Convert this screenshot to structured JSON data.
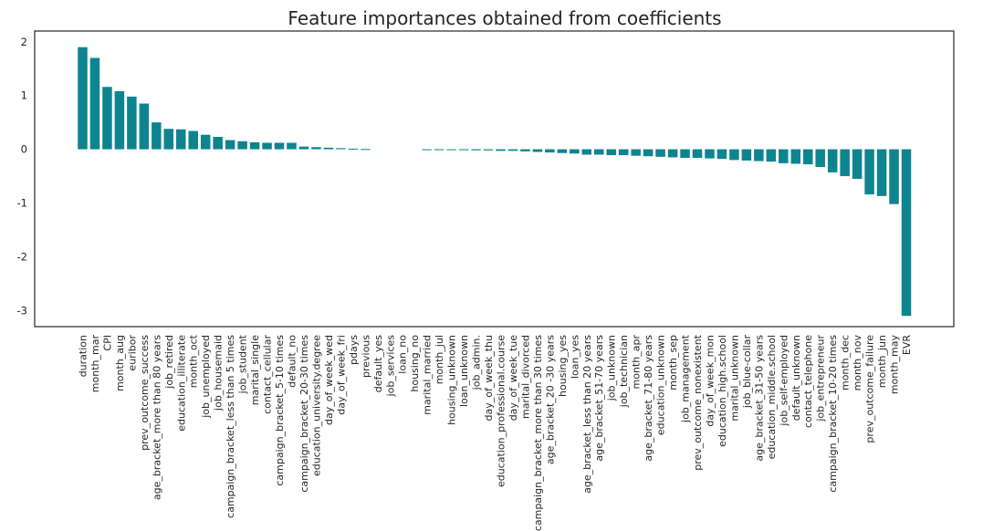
{
  "chart_data": {
    "type": "bar",
    "title": "Feature importances obtained from coefficients",
    "xlabel": "",
    "ylabel": "",
    "ylim": [
      -3.3,
      2.2
    ],
    "yticks": [
      2,
      1,
      0,
      -1,
      -2,
      -3
    ],
    "grid": false,
    "bar_color": "#0e8491",
    "frame_color": "#262626",
    "categories": [
      "duration",
      "month_mar",
      "CPI",
      "month_aug",
      "euribor",
      "prev_outcome_success",
      "age_bracket_more than 80 years",
      "job_retired",
      "education_illiterate",
      "month_oct",
      "job_unemployed",
      "job_housemaid",
      "campaign_bracket_less than 5 times",
      "job_student",
      "marital_single",
      "contact_cellular",
      "campaign_bracket_5-10 times",
      "default_no",
      "campaign_bracket_20-30 times",
      "education_university.degree",
      "day_of_week_wed",
      "day_of_week_fri",
      "pdays",
      "previous",
      "default_yes",
      "job_services",
      "loan_no",
      "housing_no",
      "marital_married",
      "month_jul",
      "housing_unknown",
      "loan_unknown",
      "job_admin.",
      "day_of_week_thu",
      "education_professional.course",
      "day_of_week_tue",
      "marital_divorced",
      "campaign_bracket_more than 30 times",
      "age_bracket_20 -30 years",
      "housing_yes",
      "loan_yes",
      "age_bracket_less than 20 years",
      "age_bracket_51-70 years",
      "job_unknown",
      "job_technician",
      "month_apr",
      "age_bracket_71-80 years",
      "education_unknown",
      "month_sep",
      "job_management",
      "prev_outcome_nonexistent",
      "day_of_week_mon",
      "education_high.school",
      "marital_unknown",
      "job_blue-collar",
      "age_bracket_31-50 years",
      "education_middle.school",
      "job_self-employed",
      "default_unknown",
      "contact_telephone",
      "job_entrepreneur",
      "campaign_bracket_10-20 times",
      "month_dec",
      "month_nov",
      "prev_outcome_failure",
      "month_jun",
      "month_may",
      "EVR"
    ],
    "values": [
      1.9,
      1.7,
      1.16,
      1.08,
      0.98,
      0.85,
      0.5,
      0.38,
      0.37,
      0.34,
      0.27,
      0.23,
      0.17,
      0.15,
      0.13,
      0.12,
      0.12,
      0.12,
      0.05,
      0.04,
      0.03,
      0.02,
      0.01,
      0.005,
      0.0,
      0.0,
      0.0,
      0.0,
      -0.01,
      -0.01,
      -0.01,
      -0.015,
      -0.02,
      -0.02,
      -0.03,
      -0.03,
      -0.04,
      -0.05,
      -0.06,
      -0.07,
      -0.08,
      -0.1,
      -0.1,
      -0.11,
      -0.11,
      -0.12,
      -0.13,
      -0.14,
      -0.15,
      -0.16,
      -0.16,
      -0.17,
      -0.18,
      -0.2,
      -0.21,
      -0.22,
      -0.23,
      -0.26,
      -0.27,
      -0.28,
      -0.33,
      -0.43,
      -0.5,
      -0.55,
      -0.84,
      -0.87,
      -1.02,
      -3.1
    ]
  }
}
